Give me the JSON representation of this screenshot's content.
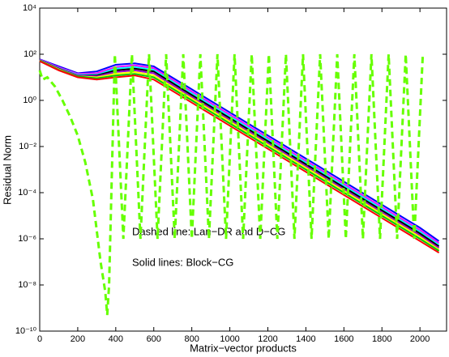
{
  "chart_data": {
    "type": "line",
    "xlabel": "Matrix−vector products",
    "ylabel": "Residual Norm",
    "annotations": [
      "Dashed line: Lan−DR and D−CG",
      "Solid lines: Block−CG"
    ],
    "xlim": [
      0,
      2140
    ],
    "xticks": [
      0,
      200,
      400,
      600,
      800,
      1000,
      1200,
      1400,
      1600,
      1800,
      2000
    ],
    "ylim": [
      1e-10,
      10000
    ],
    "log_y": true,
    "yticks": [
      {
        "value": 1e-10,
        "label": "10⁻¹⁰"
      },
      {
        "value": 1e-08,
        "label": "10⁻⁸"
      },
      {
        "value": 1e-06,
        "label": "10⁻⁶"
      },
      {
        "value": 0.0001,
        "label": "10⁻⁴"
      },
      {
        "value": 0.01,
        "label": "10⁻²"
      },
      {
        "value": 1,
        "label": "10⁰"
      },
      {
        "value": 100,
        "label": "10²"
      },
      {
        "value": 10000,
        "label": "10⁴"
      }
    ],
    "series": [
      {
        "color": "#0000ff",
        "style": "solid",
        "x": [
          0,
          100,
          200,
          300,
          400,
          500,
          600,
          800,
          1000,
          1200,
          1400,
          1600,
          1800,
          2000,
          2100
        ],
        "values": [
          60,
          30,
          15,
          18,
          35,
          40,
          30,
          3,
          0.3,
          0.03,
          0.003,
          0.0003,
          3e-05,
          3e-06,
          8e-07
        ]
      },
      {
        "color": "#ff00ff",
        "style": "solid",
        "x": [
          0,
          100,
          200,
          300,
          400,
          500,
          600,
          800,
          1000,
          1200,
          1400,
          1600,
          1800,
          2000,
          2100
        ],
        "values": [
          58,
          27,
          14,
          15,
          28,
          33,
          25,
          2.4,
          0.24,
          0.024,
          0.0024,
          0.00024,
          2.4e-05,
          2.4e-06,
          6.5e-07
        ]
      },
      {
        "color": "#00ffff",
        "style": "solid",
        "x": [
          0,
          100,
          200,
          300,
          400,
          500,
          600,
          800,
          1000,
          1200,
          1400,
          1600,
          1800,
          2000,
          2100
        ],
        "values": [
          56,
          25,
          13,
          13,
          24,
          28,
          21,
          2,
          0.2,
          0.02,
          0.002,
          0.0002,
          2e-05,
          2e-06,
          5.5e-07
        ]
      },
      {
        "color": "#000000",
        "style": "solid",
        "x": [
          0,
          100,
          200,
          300,
          400,
          500,
          600,
          800,
          1000,
          1200,
          1400,
          1600,
          1800,
          2000,
          2100
        ],
        "values": [
          55,
          24,
          12,
          12,
          20,
          24,
          18,
          1.7,
          0.17,
          0.017,
          0.0017,
          0.00017,
          1.7e-05,
          1.7e-06,
          4.7e-07
        ]
      },
      {
        "color": "#9900cc",
        "style": "solid",
        "x": [
          0,
          100,
          200,
          300,
          400,
          500,
          600,
          800,
          1000,
          1200,
          1400,
          1600,
          1800,
          2000,
          2100
        ],
        "values": [
          54,
          23,
          12,
          11,
          17,
          20,
          15,
          1.4,
          0.14,
          0.014,
          0.0014,
          0.00014,
          1.4e-05,
          1.4e-06,
          4e-07
        ]
      },
      {
        "color": "#ffff00",
        "style": "solid",
        "x": [
          0,
          100,
          200,
          300,
          400,
          500,
          600,
          800,
          1000,
          1200,
          1400,
          1600,
          1800,
          2000,
          2100
        ],
        "values": [
          53,
          22,
          11,
          10,
          14,
          17,
          12,
          1.2,
          0.12,
          0.012,
          0.0012,
          0.00012,
          1.2e-05,
          1.2e-06,
          3.4e-07
        ]
      },
      {
        "color": "#00cc00",
        "style": "solid",
        "x": [
          0,
          100,
          200,
          300,
          400,
          500,
          600,
          800,
          1000,
          1200,
          1400,
          1600,
          1800,
          2000,
          2100
        ],
        "values": [
          52,
          21,
          11,
          9,
          12,
          14,
          10,
          1,
          0.1,
          0.01,
          0.001,
          0.0001,
          1e-05,
          1e-06,
          3e-07
        ]
      },
      {
        "color": "#ff0000",
        "style": "solid",
        "x": [
          0,
          100,
          200,
          300,
          400,
          500,
          600,
          800,
          1000,
          1200,
          1400,
          1600,
          1800,
          2000,
          2100
        ],
        "values": [
          50,
          20,
          10,
          8,
          10,
          12,
          8,
          0.8,
          0.08,
          0.008,
          0.0008,
          8e-05,
          8e-06,
          8e-07,
          2.5e-07
        ]
      },
      {
        "color": "#66ff00",
        "style": "dashed",
        "x": [
          0,
          15,
          40,
          80,
          120,
          160,
          200,
          240,
          280,
          320,
          345,
          355,
          365,
          395,
          440,
          485,
          530,
          575,
          620,
          665,
          710,
          755,
          800,
          845,
          890,
          935,
          980,
          1025,
          1070,
          1115,
          1160,
          1205,
          1250,
          1295,
          1340,
          1385,
          1430,
          1475,
          1520,
          1565,
          1610,
          1655,
          1700,
          1745,
          1790,
          1835,
          1880,
          1925,
          1970,
          2015
        ],
        "values": [
          20,
          8,
          10,
          4,
          1,
          0.2,
          0.03,
          0.002,
          5e-05,
          1e-07,
          5e-09,
          5e-10,
          1e-08,
          100,
          1e-06,
          100,
          1e-06,
          100,
          1e-06,
          100,
          1e-06,
          100,
          1e-06,
          100,
          1e-06,
          100,
          1e-06,
          100,
          1e-06,
          100,
          1e-06,
          100,
          1e-06,
          100,
          1e-06,
          100,
          1e-06,
          100,
          1e-06,
          100,
          1e-06,
          100,
          1e-06,
          100,
          1e-06,
          100,
          1e-06,
          100,
          1e-06,
          100
        ]
      }
    ]
  }
}
